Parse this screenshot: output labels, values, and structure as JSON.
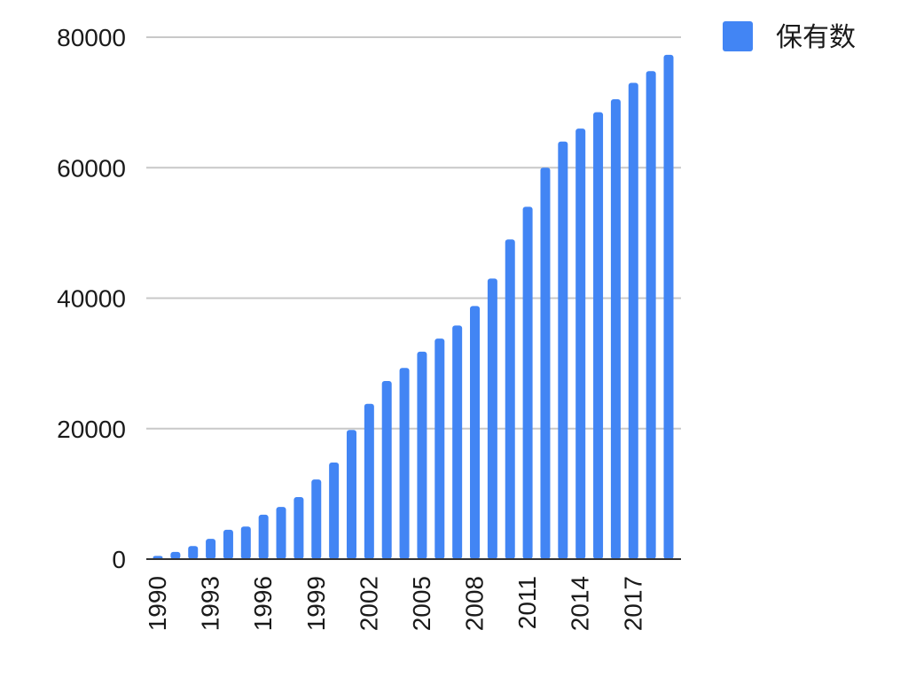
{
  "chart_data": {
    "type": "bar",
    "title": "",
    "xlabel": "",
    "ylabel": "",
    "ylim": [
      0,
      80000
    ],
    "yticks": [
      0,
      20000,
      40000,
      60000,
      80000
    ],
    "ytick_labels": [
      "0",
      "20000",
      "40000",
      "60000",
      "80000"
    ],
    "grid": true,
    "legend_position": "top-right",
    "categories": [
      "1990",
      "1991",
      "1992",
      "1993",
      "1994",
      "1995",
      "1996",
      "1997",
      "1998",
      "1999",
      "2000",
      "2001",
      "2002",
      "2003",
      "2004",
      "2005",
      "2006",
      "2007",
      "2008",
      "2009",
      "2010",
      "2011",
      "2012",
      "2013",
      "2014",
      "2015",
      "2016",
      "2017",
      "2018",
      "2019"
    ],
    "xtick_labels": [
      "1990",
      "1993",
      "1996",
      "1999",
      "2002",
      "2005",
      "2008",
      "2011",
      "2014",
      "2017"
    ],
    "series": [
      {
        "name": "保有数",
        "color": "#4285f4",
        "values": [
          500,
          1100,
          2000,
          3100,
          4500,
          5000,
          6800,
          8000,
          9500,
          12200,
          14800,
          19800,
          23800,
          27300,
          29300,
          31800,
          33800,
          35800,
          38800,
          43000,
          49000,
          54000,
          60000,
          64000,
          66000,
          68500,
          70500,
          73000,
          74800,
          77300
        ]
      }
    ]
  }
}
